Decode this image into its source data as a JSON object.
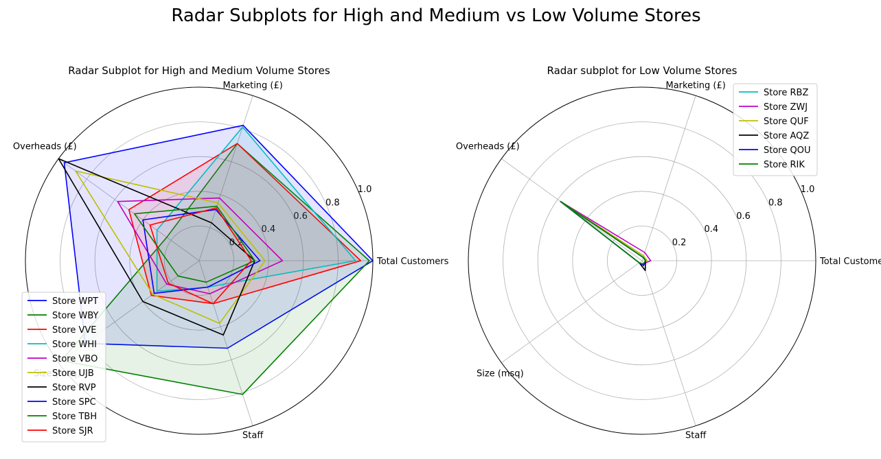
{
  "figure": {
    "title": "Radar Subplots for High and Medium vs Low Volume Stores"
  },
  "chart_data": [
    {
      "type": "radar",
      "title": "Radar Subplot for High and Medium Volume Stores",
      "axes": [
        "Total Customers",
        "Marketing (£)",
        "Overheads (£)",
        "Size (msq)",
        "Staff"
      ],
      "radial_ticks": [
        "0.2",
        "0.4",
        "0.6",
        "0.8",
        "1.0"
      ],
      "rlim": [
        0,
        1.0
      ],
      "grid": true,
      "filled": true,
      "legend_position": "lower-left",
      "series": [
        {
          "name": "Store WPT",
          "color": "#0000ff",
          "fill": true,
          "values": [
            1.0,
            0.82,
            0.96,
            0.81,
            0.53
          ]
        },
        {
          "name": "Store WBY",
          "color": "#008000",
          "fill": true,
          "values": [
            0.98,
            0.71,
            0.23,
            0.98,
            0.81
          ]
        },
        {
          "name": "Store VVE",
          "color": "#ff0000",
          "fill": true,
          "values": [
            0.93,
            0.71,
            0.5,
            0.34,
            0.26
          ]
        },
        {
          "name": "Store WHI",
          "color": "#00bfbf",
          "fill": true,
          "values": [
            0.9,
            0.81,
            0.3,
            0.3,
            0.16
          ]
        },
        {
          "name": "Store VBO",
          "color": "#bf00bf",
          "fill": false,
          "values": [
            0.48,
            0.38,
            0.58,
            0.23,
            0.2
          ]
        },
        {
          "name": "Store UJB",
          "color": "#bfbf00",
          "fill": false,
          "values": [
            0.38,
            0.35,
            0.88,
            0.33,
            0.38
          ]
        },
        {
          "name": "Store RVP",
          "color": "#000000",
          "fill": false,
          "values": [
            0.32,
            0.23,
            1.0,
            0.4,
            0.45
          ]
        },
        {
          "name": "Store SPC",
          "color": "#0000ff",
          "fill": false,
          "values": [
            0.35,
            0.31,
            0.4,
            0.32,
            0.16
          ]
        },
        {
          "name": "Store TBH",
          "color": "#008000",
          "fill": false,
          "values": [
            0.32,
            0.33,
            0.46,
            0.15,
            0.13
          ]
        },
        {
          "name": "Store SJR",
          "color": "#ff0000",
          "fill": false,
          "values": [
            0.3,
            0.32,
            0.35,
            0.22,
            0.26
          ]
        }
      ]
    },
    {
      "type": "radar",
      "title": "Radar subplot for Low Volume Stores",
      "axes": [
        "Total Customers",
        "Marketing (£)",
        "Overheads (£)",
        "Size (msq)",
        "Staff"
      ],
      "radial_ticks": [
        "0.2",
        "0.4",
        "0.6",
        "0.8",
        "1.0"
      ],
      "rlim": [
        0,
        1.0
      ],
      "grid": true,
      "filled": false,
      "legend_position": "upper-right",
      "series": [
        {
          "name": "Store RBZ",
          "color": "#00bfbf",
          "values": [
            0.022,
            0.03,
            0.58,
            0.02,
            0.02
          ]
        },
        {
          "name": "Store ZWJ",
          "color": "#bf00bf",
          "values": [
            0.05,
            0.05,
            0.58,
            0.02,
            0.02
          ]
        },
        {
          "name": "Store QUF",
          "color": "#bfbf00",
          "values": [
            0.03,
            0.03,
            0.58,
            0.02,
            0.02
          ]
        },
        {
          "name": "Store AQZ",
          "color": "#000000",
          "values": [
            0.02,
            0.02,
            0.58,
            0.02,
            0.06
          ]
        },
        {
          "name": "Store QOU",
          "color": "#0000ff",
          "values": [
            0.02,
            0.02,
            0.58,
            0.02,
            0.03
          ]
        },
        {
          "name": "Store RIK",
          "color": "#008000",
          "values": [
            0.02,
            0.02,
            0.58,
            0.02,
            0.02
          ]
        }
      ]
    }
  ]
}
